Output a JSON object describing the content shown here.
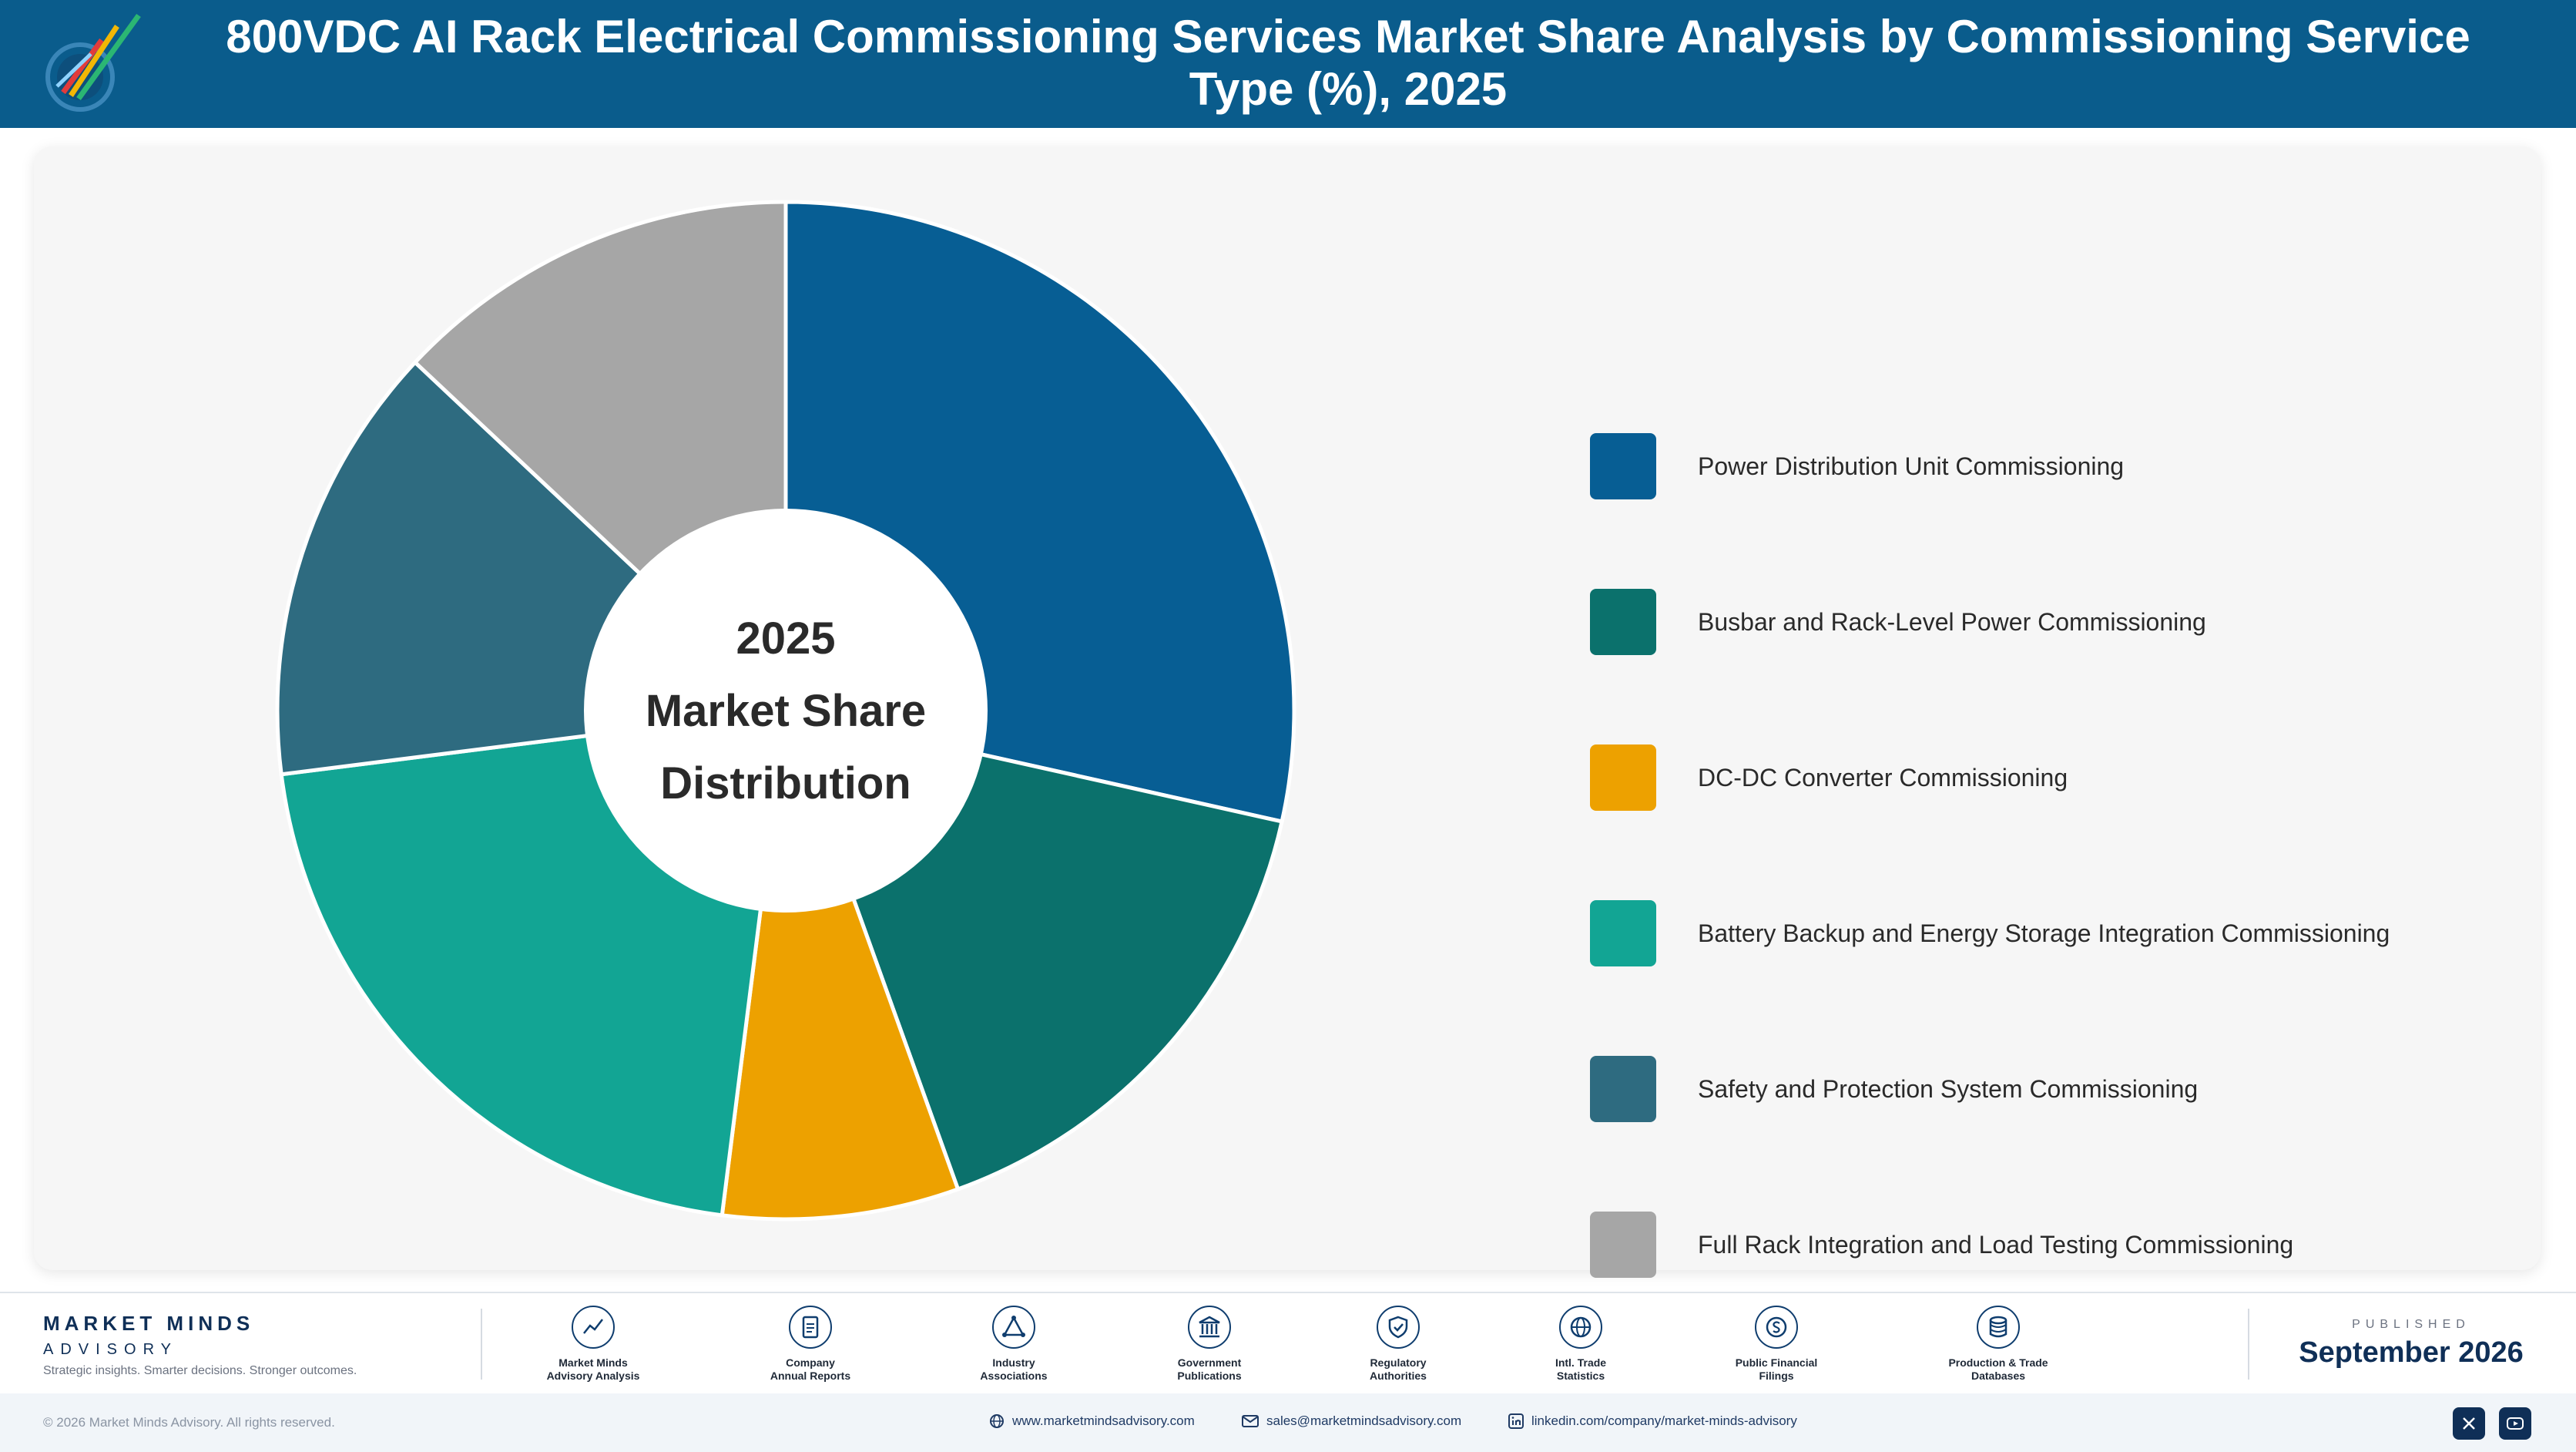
{
  "header": {
    "title": "800VDC AI Rack Electrical Commissioning Services Market Share Analysis by Commissioning Service Type (%), 2025"
  },
  "chart_data": {
    "type": "pie",
    "title": "800VDC AI Rack Electrical Commissioning Services Market Share Analysis by Commissioning Service Type (%), 2025",
    "center_label": [
      "2025",
      "Market Share",
      "Distribution"
    ],
    "categories": [
      "Power Distribution Unit Commissioning",
      "Busbar and Rack-Level Power Commissioning",
      "DC-DC Converter Commissioning",
      "Battery Backup and Energy Storage Integration Commissioning",
      "Safety and Protection System Commissioning",
      "Full Rack Integration and Load Testing Commissioning"
    ],
    "values": [
      28.5,
      16.0,
      7.5,
      21.0,
      14.0,
      13.0
    ],
    "colors": [
      "#075e94",
      "#0b716c",
      "#eda100",
      "#12a594",
      "#2e6b80",
      "#a6a6a6"
    ],
    "legend_position": "right",
    "donut": true
  },
  "footer": {
    "brand_name": "MARKET MINDS",
    "brand_sub": "ADVISORY",
    "tagline": "Strategic insights. Smarter decisions. Stronger outcomes.",
    "sources": [
      {
        "line1": "Market Minds",
        "line2": "Advisory Analysis",
        "icon": "trend-icon"
      },
      {
        "line1": "Company",
        "line2": "Annual Reports",
        "icon": "document-icon"
      },
      {
        "line1": "Industry",
        "line2": "Associations",
        "icon": "network-icon"
      },
      {
        "line1": "Government",
        "line2": "Publications",
        "icon": "building-icon"
      },
      {
        "line1": "Regulatory",
        "line2": "Authorities",
        "icon": "shield-icon"
      },
      {
        "line1": "Intl. Trade",
        "line2": "Statistics",
        "icon": "globe-icon"
      },
      {
        "line1": "Public Financial",
        "line2": "Filings",
        "icon": "coin-icon"
      },
      {
        "line1": "Production & Trade",
        "line2": "Databases",
        "icon": "database-icon"
      }
    ],
    "published_label": "PUBLISHED",
    "published_date": "September 2026",
    "copyright": "© 2026 Market Minds Advisory. All rights reserved.",
    "website": "www.marketmindsadvisory.com",
    "email": "sales@marketmindsadvisory.com",
    "linkedin": "linkedin.com/company/market-minds-advisory"
  }
}
